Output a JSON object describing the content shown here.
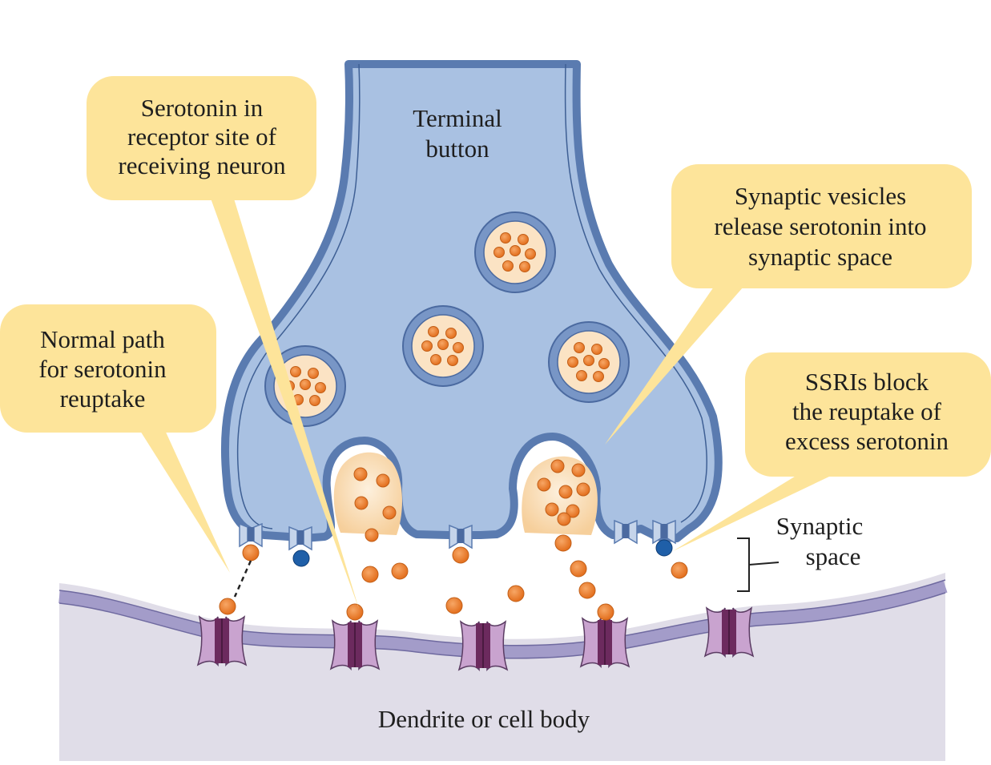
{
  "figure": {
    "callouts": {
      "receptor_site": [
        "Serotonin in",
        "receptor site of",
        "receiving neuron"
      ],
      "vesicle_release": [
        "Synaptic vesicles",
        "release serotonin into",
        "synaptic space"
      ],
      "normal_reuptake": [
        "Normal path",
        "for serotonin",
        "reuptake"
      ],
      "ssri_block": [
        "SSRIs block",
        "the reuptake of",
        "excess serotonin"
      ]
    },
    "labels": {
      "terminal_button": [
        "Terminal",
        "button"
      ],
      "synaptic_space": [
        "Synaptic",
        "space"
      ],
      "dendrite": "Dendrite or cell body"
    },
    "colors": {
      "callout_fill": "#fde49a",
      "terminal_fill": "#a9c1e2",
      "terminal_outline": "#5a7bb0",
      "membrane_fill": "#e0dde8",
      "membrane_band": "#a39cc9",
      "receptor_fill": "#c9a3cf",
      "receptor_core": "#6c2a5e",
      "serotonin": "#ee8332",
      "ssri": "#1f5fa8",
      "vesicle_fill": "#fbe3c4"
    }
  }
}
